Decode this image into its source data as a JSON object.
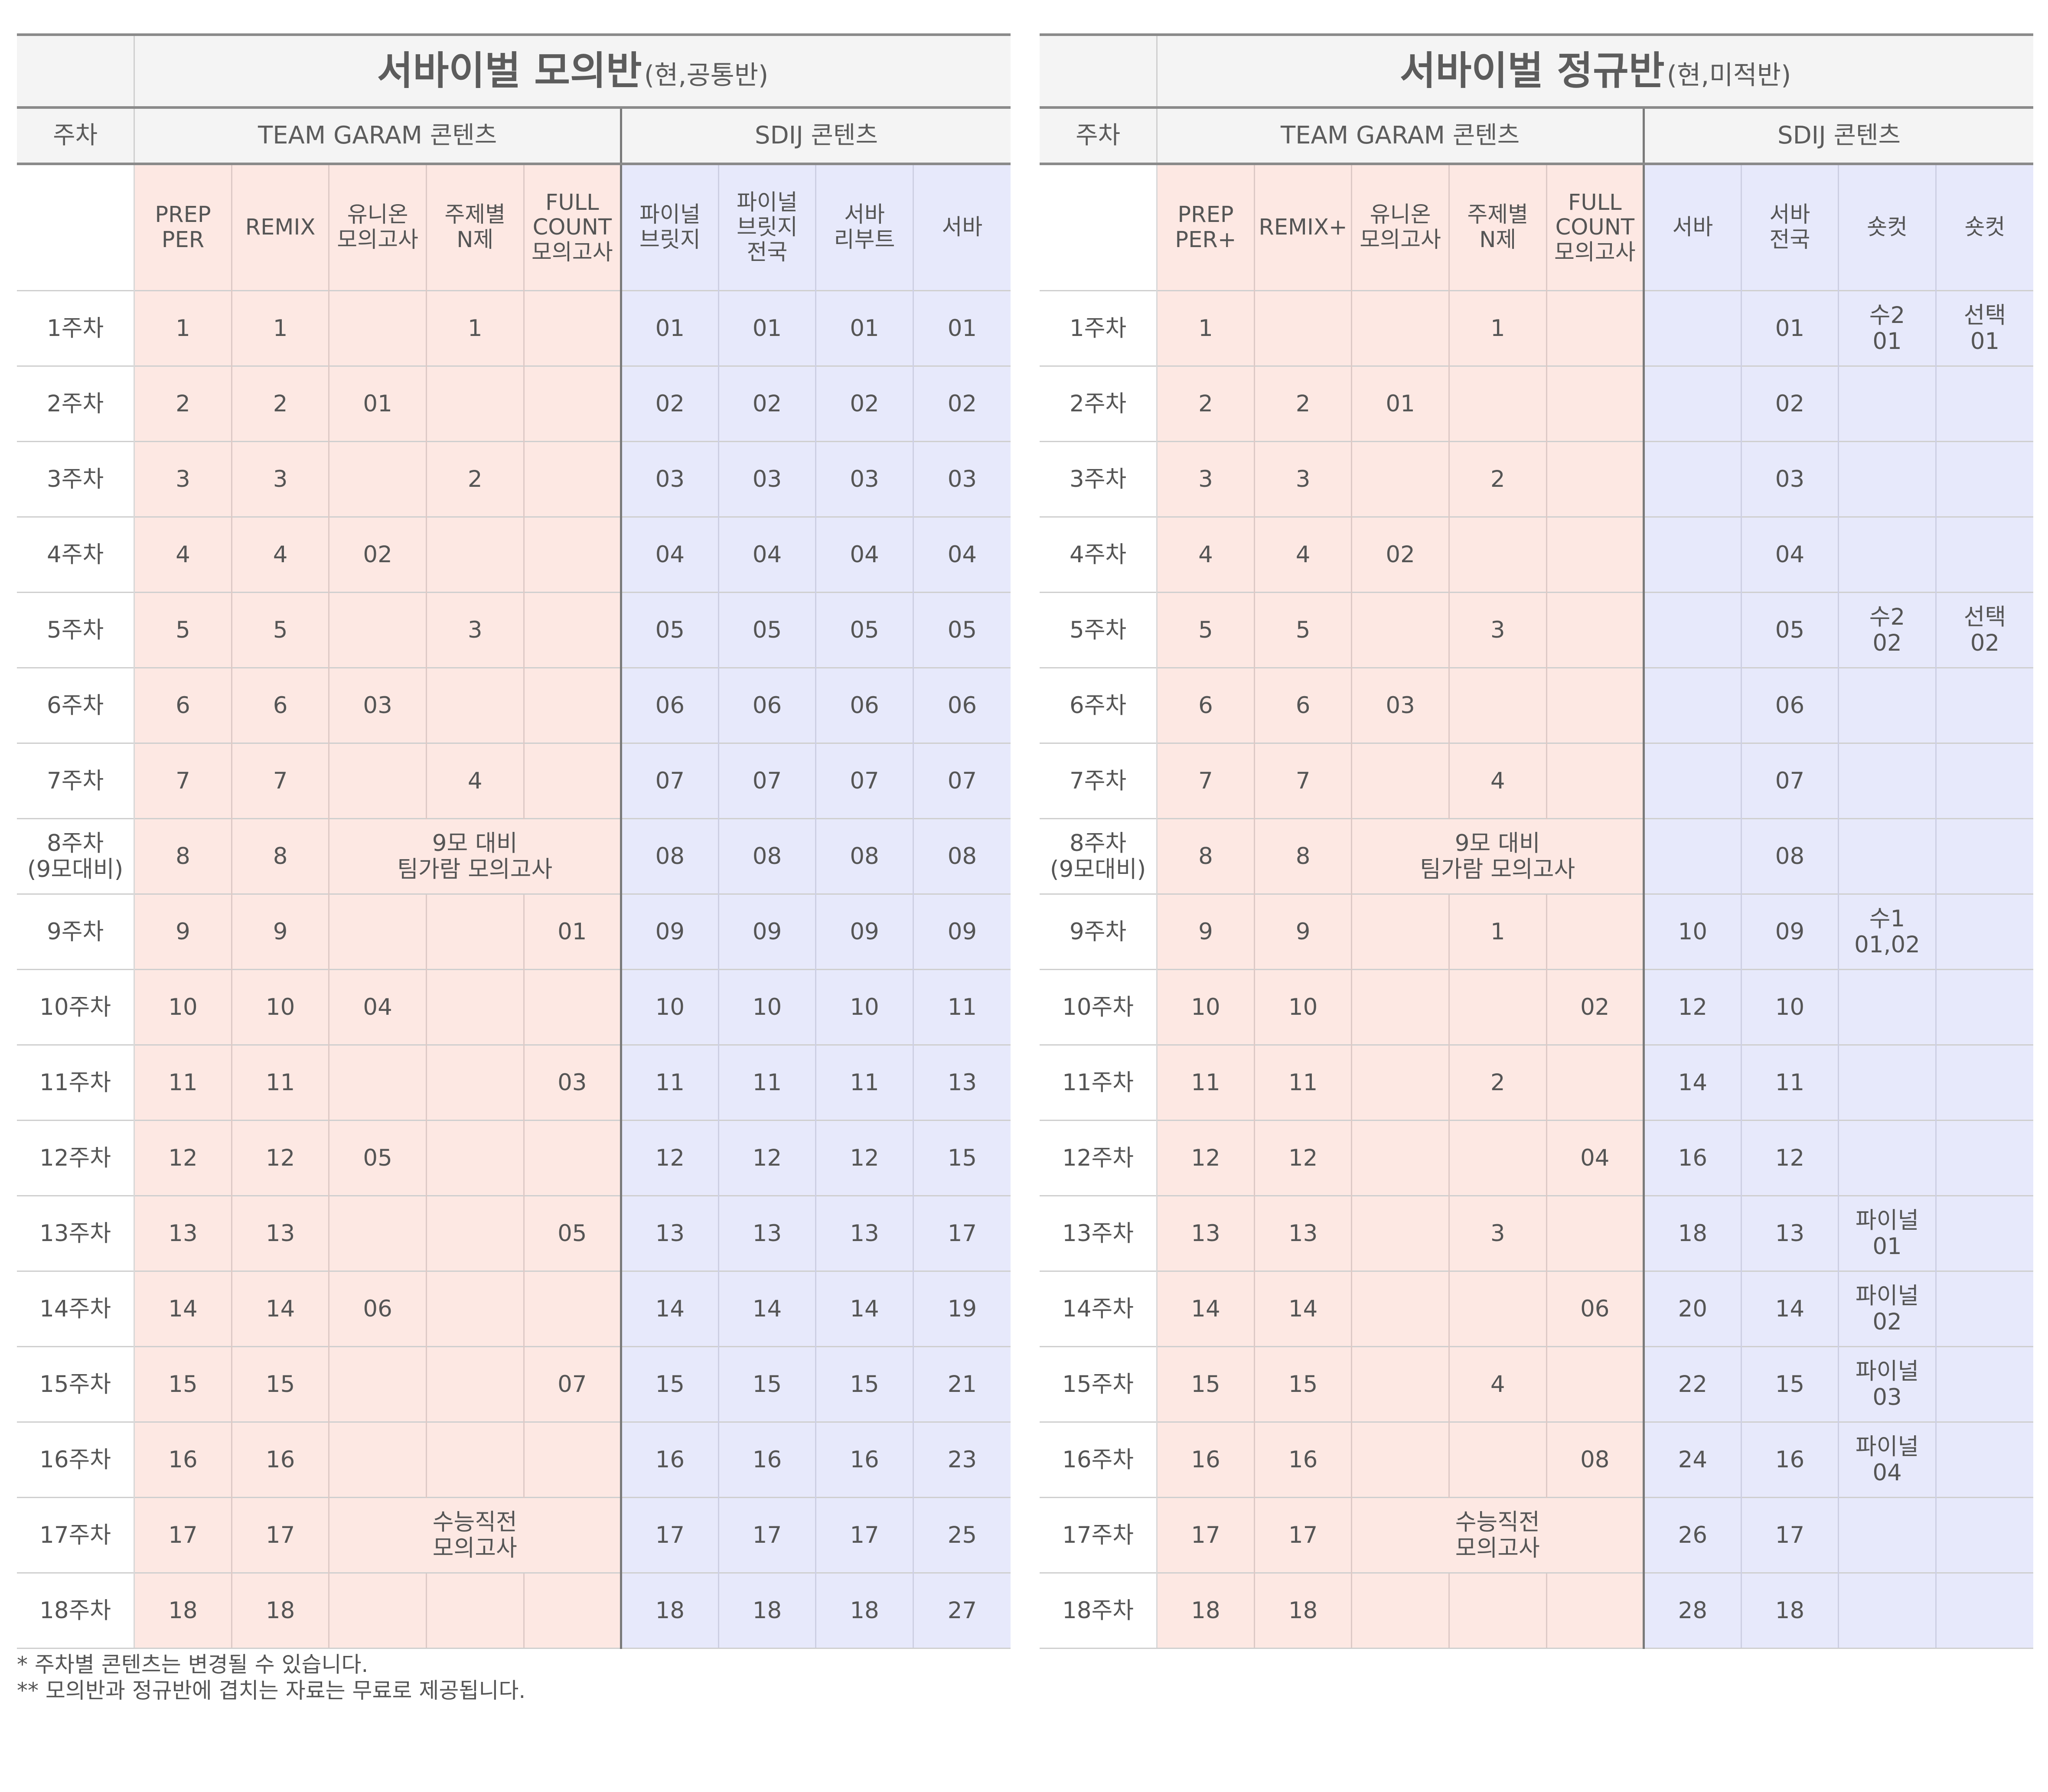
{
  "tables": [
    {
      "title_main": "서바이벌 모의반",
      "title_sub": "(현,공통반)",
      "week_header": "주차",
      "group_pink": "TEAM GARAM 콘텐츠",
      "group_blue": "SDIJ 콘텐츠",
      "columns": [
        "PREP\nPER",
        "REMIX",
        "유니온\n모의고사",
        "주제별\nN제",
        "FULL\nCOUNT\n모의고사",
        "파이널\n브릿지",
        "파이널\n브릿지\n전국",
        "서바\n리부트",
        "서바"
      ],
      "pink_count": 5,
      "rows": [
        {
          "week": "1주차",
          "cells": [
            "1",
            "1",
            "",
            "1",
            "",
            "01",
            "01",
            "01",
            "01"
          ]
        },
        {
          "week": "2주차",
          "cells": [
            "2",
            "2",
            "01",
            "",
            "",
            "02",
            "02",
            "02",
            "02"
          ]
        },
        {
          "week": "3주차",
          "cells": [
            "3",
            "3",
            "",
            "2",
            "",
            "03",
            "03",
            "03",
            "03"
          ]
        },
        {
          "week": "4주차",
          "cells": [
            "4",
            "4",
            "02",
            "",
            "",
            "04",
            "04",
            "04",
            "04"
          ]
        },
        {
          "week": "5주차",
          "cells": [
            "5",
            "5",
            "",
            "3",
            "",
            "05",
            "05",
            "05",
            "05"
          ]
        },
        {
          "week": "6주차",
          "cells": [
            "6",
            "6",
            "03",
            "",
            "",
            "06",
            "06",
            "06",
            "06"
          ]
        },
        {
          "week": "7주차",
          "cells": [
            "7",
            "7",
            "",
            "4",
            "",
            "07",
            "07",
            "07",
            "07"
          ]
        },
        {
          "week": "8주차\n(9모대비)",
          "cells": [
            "8",
            "8",
            "9모 대비\n팀가람 모의고사",
            "08",
            "08",
            "08",
            "08"
          ],
          "span": [
            1,
            1,
            3,
            1,
            1,
            1,
            1
          ]
        },
        {
          "week": "9주차",
          "cells": [
            "9",
            "9",
            "",
            "",
            "01",
            "09",
            "09",
            "09",
            "09"
          ]
        },
        {
          "week": "10주차",
          "cells": [
            "10",
            "10",
            "04",
            "",
            "",
            "10",
            "10",
            "10",
            "11"
          ]
        },
        {
          "week": "11주차",
          "cells": [
            "11",
            "11",
            "",
            "",
            "03",
            "11",
            "11",
            "11",
            "13"
          ]
        },
        {
          "week": "12주차",
          "cells": [
            "12",
            "12",
            "05",
            "",
            "",
            "12",
            "12",
            "12",
            "15"
          ]
        },
        {
          "week": "13주차",
          "cells": [
            "13",
            "13",
            "",
            "",
            "05",
            "13",
            "13",
            "13",
            "17"
          ]
        },
        {
          "week": "14주차",
          "cells": [
            "14",
            "14",
            "06",
            "",
            "",
            "14",
            "14",
            "14",
            "19"
          ]
        },
        {
          "week": "15주차",
          "cells": [
            "15",
            "15",
            "",
            "",
            "07",
            "15",
            "15",
            "15",
            "21"
          ]
        },
        {
          "week": "16주차",
          "cells": [
            "16",
            "16",
            "",
            "",
            "",
            "16",
            "16",
            "16",
            "23"
          ]
        },
        {
          "week": "17주차",
          "cells": [
            "17",
            "17",
            "수능직전\n모의고사",
            "17",
            "17",
            "17",
            "25"
          ],
          "span": [
            1,
            1,
            3,
            1,
            1,
            1,
            1
          ]
        },
        {
          "week": "18주차",
          "cells": [
            "18",
            "18",
            "",
            "",
            "",
            "18",
            "18",
            "18",
            "27"
          ]
        }
      ]
    },
    {
      "title_main": "서바이벌 정규반",
      "title_sub": "(현,미적반)",
      "week_header": "주차",
      "group_pink": "TEAM GARAM 콘텐츠",
      "group_blue": "SDIJ 콘텐츠",
      "columns": [
        "PREP\nPER+",
        "REMIX+",
        "유니온\n모의고사",
        "주제별\nN제",
        "FULL\nCOUNT\n모의고사",
        "서바",
        "서바\n전국",
        "숏컷",
        "숏컷"
      ],
      "pink_count": 5,
      "rows": [
        {
          "week": "1주차",
          "cells": [
            "1",
            "",
            "",
            "1",
            "",
            "",
            "01",
            "수2\n01",
            "선택\n01"
          ]
        },
        {
          "week": "2주차",
          "cells": [
            "2",
            "2",
            "01",
            "",
            "",
            "",
            "02",
            "",
            ""
          ]
        },
        {
          "week": "3주차",
          "cells": [
            "3",
            "3",
            "",
            "2",
            "",
            "",
            "03",
            "",
            ""
          ]
        },
        {
          "week": "4주차",
          "cells": [
            "4",
            "4",
            "02",
            "",
            "",
            "",
            "04",
            "",
            ""
          ]
        },
        {
          "week": "5주차",
          "cells": [
            "5",
            "5",
            "",
            "3",
            "",
            "",
            "05",
            "수2\n02",
            "선택\n02"
          ]
        },
        {
          "week": "6주차",
          "cells": [
            "6",
            "6",
            "03",
            "",
            "",
            "",
            "06",
            "",
            ""
          ]
        },
        {
          "week": "7주차",
          "cells": [
            "7",
            "7",
            "",
            "4",
            "",
            "",
            "07",
            "",
            ""
          ]
        },
        {
          "week": "8주차\n(9모대비)",
          "cells": [
            "8",
            "8",
            "9모 대비\n팀가람 모의고사",
            "",
            "08",
            "",
            ""
          ],
          "span": [
            1,
            1,
            3,
            1,
            1,
            1,
            1
          ]
        },
        {
          "week": "9주차",
          "cells": [
            "9",
            "9",
            "",
            "1",
            "",
            "10",
            "09",
            "수1\n01,02",
            ""
          ]
        },
        {
          "week": "10주차",
          "cells": [
            "10",
            "10",
            "",
            "",
            "02",
            "12",
            "10",
            "",
            ""
          ]
        },
        {
          "week": "11주차",
          "cells": [
            "11",
            "11",
            "",
            "2",
            "",
            "14",
            "11",
            "",
            ""
          ]
        },
        {
          "week": "12주차",
          "cells": [
            "12",
            "12",
            "",
            "",
            "04",
            "16",
            "12",
            "",
            ""
          ]
        },
        {
          "week": "13주차",
          "cells": [
            "13",
            "13",
            "",
            "3",
            "",
            "18",
            "13",
            "파이널\n01",
            ""
          ]
        },
        {
          "week": "14주차",
          "cells": [
            "14",
            "14",
            "",
            "",
            "06",
            "20",
            "14",
            "파이널\n02",
            ""
          ]
        },
        {
          "week": "15주차",
          "cells": [
            "15",
            "15",
            "",
            "4",
            "",
            "22",
            "15",
            "파이널\n03",
            ""
          ]
        },
        {
          "week": "16주차",
          "cells": [
            "16",
            "16",
            "",
            "",
            "08",
            "24",
            "16",
            "파이널\n04",
            ""
          ]
        },
        {
          "week": "17주차",
          "cells": [
            "17",
            "17",
            "수능직전\n모의고사",
            "26",
            "17",
            "",
            ""
          ],
          "span": [
            1,
            1,
            3,
            1,
            1,
            1,
            1
          ]
        },
        {
          "week": "18주차",
          "cells": [
            "18",
            "18",
            "",
            "",
            "",
            "28",
            "18",
            "",
            ""
          ]
        }
      ]
    }
  ],
  "notes": [
    "* 주차별 콘텐츠는 변경될 수 있습니다.",
    "** 모의반과 정규반에 겹치는 자료는 무료로 제공됩니다."
  ],
  "colors": {
    "pink": "#fde8e3",
    "blue": "#e7e9fb",
    "header_bg": "#f4f4f4",
    "text": "#555555"
  }
}
